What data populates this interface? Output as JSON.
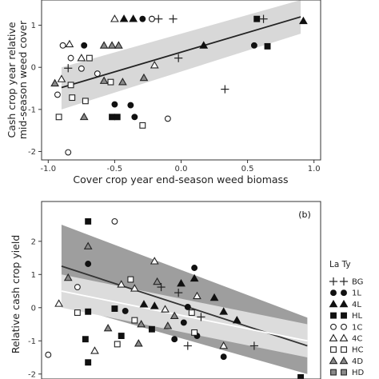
{
  "chart_data": [
    {
      "type": "scatter",
      "panel_label": "",
      "xlabel": "Cover crop year end-season weed biomass",
      "ylabel_lines": [
        "Cash crop year relative",
        "mid-season weed cover"
      ],
      "xlim": [
        -1.05,
        1.05
      ],
      "ylim": [
        -2.2,
        1.6
      ],
      "xticks": [
        -1.0,
        -0.5,
        0.0,
        0.5,
        1.0
      ],
      "xtick_labels": [
        "-1.0",
        "-0.5",
        "0.0",
        "0.5",
        "1.0"
      ],
      "yticks": [
        -2,
        -1,
        0,
        1
      ],
      "ytick_labels": [
        "-2",
        "-1",
        "0",
        "1"
      ],
      "colors": {
        "band": "#d8d8d8",
        "line": "#222222",
        "background": "#ffffff"
      },
      "bands": [
        {
          "x": [
            -0.9,
            0.9
          ],
          "lower": [
            -1.0,
            0.8
          ],
          "upper": [
            0.0,
            1.6
          ]
        }
      ],
      "trend_lines": [
        {
          "x": [
            -0.9,
            0.9
          ],
          "y": [
            -0.48,
            1.2
          ],
          "color": "#222222"
        }
      ],
      "points": [
        {
          "x": -0.5,
          "y": 1.15,
          "m": "4C"
        },
        {
          "x": -0.43,
          "y": 1.15,
          "m": "4L"
        },
        {
          "x": -0.36,
          "y": 1.15,
          "m": "4L"
        },
        {
          "x": -0.29,
          "y": 1.15,
          "m": "1L"
        },
        {
          "x": -0.22,
          "y": 1.15,
          "m": "1L"
        },
        {
          "x": -0.22,
          "y": 1.15,
          "m": "1C"
        },
        {
          "x": -0.17,
          "y": 1.15,
          "m": "BG"
        },
        {
          "x": -0.06,
          "y": 1.15,
          "m": "BG"
        },
        {
          "x": 0.57,
          "y": 1.15,
          "m": "HL"
        },
        {
          "x": 0.62,
          "y": 1.15,
          "m": "BG"
        },
        {
          "x": 0.92,
          "y": 1.1,
          "m": "4L"
        },
        {
          "x": -0.89,
          "y": 0.52,
          "m": "1C"
        },
        {
          "x": -0.84,
          "y": 0.55,
          "m": "4C"
        },
        {
          "x": -0.73,
          "y": 0.52,
          "m": "1L"
        },
        {
          "x": -0.58,
          "y": 0.52,
          "m": "4D"
        },
        {
          "x": -0.52,
          "y": 0.52,
          "m": "4D"
        },
        {
          "x": -0.47,
          "y": 0.52,
          "m": "4D"
        },
        {
          "x": 0.17,
          "y": 0.52,
          "m": "4L"
        },
        {
          "x": 0.55,
          "y": 0.52,
          "m": "1L"
        },
        {
          "x": 0.65,
          "y": 0.5,
          "m": "HL"
        },
        {
          "x": -0.83,
          "y": 0.22,
          "m": "1C"
        },
        {
          "x": -0.75,
          "y": 0.22,
          "m": "4C"
        },
        {
          "x": -0.69,
          "y": 0.22,
          "m": "HC"
        },
        {
          "x": -0.85,
          "y": -0.02,
          "m": "BG"
        },
        {
          "x": -0.75,
          "y": -0.03,
          "m": "1C"
        },
        {
          "x": -0.2,
          "y": 0.05,
          "m": "4C"
        },
        {
          "x": -0.02,
          "y": 0.22,
          "m": "BG"
        },
        {
          "x": -0.95,
          "y": -0.38,
          "m": "4D"
        },
        {
          "x": -0.9,
          "y": -0.28,
          "m": "4C"
        },
        {
          "x": -0.83,
          "y": -0.42,
          "m": "HC"
        },
        {
          "x": -0.63,
          "y": -0.15,
          "m": "1C"
        },
        {
          "x": -0.58,
          "y": -0.32,
          "m": "4D"
        },
        {
          "x": -0.53,
          "y": -0.35,
          "m": "HC"
        },
        {
          "x": -0.44,
          "y": -0.35,
          "m": "4D"
        },
        {
          "x": -0.28,
          "y": -0.25,
          "m": "4D"
        },
        {
          "x": 0.33,
          "y": -0.52,
          "m": "BG"
        },
        {
          "x": -0.93,
          "y": -0.65,
          "m": "1C"
        },
        {
          "x": -0.82,
          "y": -0.72,
          "m": "HC"
        },
        {
          "x": -0.72,
          "y": -0.8,
          "m": "HC"
        },
        {
          "x": -0.5,
          "y": -0.88,
          "m": "1L"
        },
        {
          "x": -0.38,
          "y": -0.9,
          "m": "1L"
        },
        {
          "x": -0.52,
          "y": -1.18,
          "m": "HL"
        },
        {
          "x": -0.48,
          "y": -1.18,
          "m": "HL"
        },
        {
          "x": -0.73,
          "y": -1.18,
          "m": "4D"
        },
        {
          "x": -0.92,
          "y": -1.18,
          "m": "HC"
        },
        {
          "x": -0.35,
          "y": -1.18,
          "m": "1L"
        },
        {
          "x": -0.29,
          "y": -1.38,
          "m": "HC"
        },
        {
          "x": -0.1,
          "y": -1.22,
          "m": "1C"
        },
        {
          "x": -0.85,
          "y": -2.02,
          "m": "1C"
        }
      ]
    },
    {
      "type": "scatter",
      "panel_label": "(b)",
      "xlabel": "",
      "ylabel_lines": [
        "Relative cash crop yield"
      ],
      "xlim": [
        -1.05,
        1.05
      ],
      "ylim": [
        -2.15,
        3.2
      ],
      "xticks": [],
      "xtick_labels": [],
      "yticks": [
        -2,
        -1,
        0,
        1,
        2
      ],
      "ytick_labels": [
        "-2",
        "-1",
        "0",
        "1",
        "2"
      ],
      "colors": {
        "band_outer": "#9e9e9e",
        "band_inner": "#dcdcdc",
        "line_dark": "#333333",
        "line_light": "#ffffff",
        "background": "#ffffff"
      },
      "bands": [
        {
          "x": [
            -0.9,
            0.95
          ],
          "lower": [
            0.1,
            -2.0
          ],
          "upper": [
            2.5,
            -0.3
          ],
          "color": "#9e9e9e"
        },
        {
          "x": [
            -0.9,
            0.95
          ],
          "lower": [
            0.0,
            -1.5
          ],
          "upper": [
            1.0,
            -0.5
          ],
          "color": "#dcdcdc"
        }
      ],
      "trend_lines": [
        {
          "x": [
            -0.9,
            0.95
          ],
          "y": [
            1.25,
            -1.15
          ],
          "color": "#333333"
        },
        {
          "x": [
            -0.9,
            0.95
          ],
          "y": [
            0.5,
            -1.0
          ],
          "color": "#ffffff"
        }
      ],
      "points": [
        {
          "x": -0.7,
          "y": 2.6,
          "m": "HL"
        },
        {
          "x": -0.5,
          "y": 2.6,
          "m": "1C"
        },
        {
          "x": -0.7,
          "y": 1.85,
          "m": "4D"
        },
        {
          "x": -0.7,
          "y": 1.32,
          "m": "1L"
        },
        {
          "x": -0.2,
          "y": 1.4,
          "m": "4C"
        },
        {
          "x": 0.1,
          "y": 1.2,
          "m": "1L"
        },
        {
          "x": 0.1,
          "y": 0.88,
          "m": "4L"
        },
        {
          "x": 0.12,
          "y": 0.35,
          "m": "4C"
        },
        {
          "x": -0.85,
          "y": 0.9,
          "m": "4D"
        },
        {
          "x": -0.78,
          "y": 0.62,
          "m": "1C"
        },
        {
          "x": -0.45,
          "y": 0.7,
          "m": "4C"
        },
        {
          "x": -0.38,
          "y": 0.85,
          "m": "HC"
        },
        {
          "x": -0.35,
          "y": 0.58,
          "m": "4C"
        },
        {
          "x": -0.18,
          "y": 0.78,
          "m": "4D"
        },
        {
          "x": -0.15,
          "y": 0.62,
          "m": "BG"
        },
        {
          "x": 0.0,
          "y": 0.73,
          "m": "4L"
        },
        {
          "x": -0.02,
          "y": 0.45,
          "m": "BG"
        },
        {
          "x": -0.92,
          "y": 0.12,
          "m": "4C"
        },
        {
          "x": -0.78,
          "y": -0.15,
          "m": "HC"
        },
        {
          "x": -0.7,
          "y": -0.12,
          "m": "HL"
        },
        {
          "x": -0.5,
          "y": -0.03,
          "m": "HL"
        },
        {
          "x": -0.42,
          "y": -0.1,
          "m": "1L"
        },
        {
          "x": -0.28,
          "y": 0.1,
          "m": "4L"
        },
        {
          "x": -0.2,
          "y": 0.05,
          "m": "4L"
        },
        {
          "x": -0.12,
          "y": -0.05,
          "m": "4C"
        },
        {
          "x": -0.05,
          "y": -0.25,
          "m": "4D"
        },
        {
          "x": 0.05,
          "y": 0.02,
          "m": "1L"
        },
        {
          "x": 0.08,
          "y": -0.15,
          "m": "HC"
        },
        {
          "x": 0.15,
          "y": -0.28,
          "m": "BG"
        },
        {
          "x": 0.25,
          "y": 0.3,
          "m": "4L"
        },
        {
          "x": 0.32,
          "y": -0.12,
          "m": "4L"
        },
        {
          "x": 0.42,
          "y": -0.38,
          "m": "4L"
        },
        {
          "x": -0.35,
          "y": -0.38,
          "m": "HC"
        },
        {
          "x": -0.3,
          "y": -0.5,
          "m": "4D"
        },
        {
          "x": -0.22,
          "y": -0.65,
          "m": "HL"
        },
        {
          "x": -0.1,
          "y": -0.55,
          "m": "4D"
        },
        {
          "x": 0.02,
          "y": -0.45,
          "m": "1L"
        },
        {
          "x": 0.12,
          "y": -0.85,
          "m": "1L"
        },
        {
          "x": -0.72,
          "y": -0.95,
          "m": "HL"
        },
        {
          "x": -0.55,
          "y": -0.62,
          "m": "4D"
        },
        {
          "x": -0.45,
          "y": -0.85,
          "m": "HL"
        },
        {
          "x": -0.05,
          "y": -0.95,
          "m": "1L"
        },
        {
          "x": 0.1,
          "y": -0.75,
          "m": "HC"
        },
        {
          "x": -0.65,
          "y": -1.3,
          "m": "4C"
        },
        {
          "x": -0.48,
          "y": -1.1,
          "m": "HC"
        },
        {
          "x": -0.32,
          "y": -1.08,
          "m": "4D"
        },
        {
          "x": 0.05,
          "y": -1.15,
          "m": "BG"
        },
        {
          "x": 0.32,
          "y": -1.15,
          "m": "4C"
        },
        {
          "x": 0.55,
          "y": -1.15,
          "m": "BG"
        },
        {
          "x": 0.32,
          "y": -1.48,
          "m": "1L"
        },
        {
          "x": -0.7,
          "y": -1.65,
          "m": "HL"
        },
        {
          "x": -1.0,
          "y": -1.42,
          "m": "1C"
        },
        {
          "x": 0.9,
          "y": -2.1,
          "m": "HL"
        }
      ]
    }
  ],
  "legend": {
    "title": "La Ty",
    "entries": [
      {
        "key": "BG",
        "label": "BG"
      },
      {
        "key": "1L",
        "label": "1L"
      },
      {
        "key": "4L",
        "label": "4L"
      },
      {
        "key": "HL",
        "label": "HL"
      },
      {
        "key": "1C",
        "label": "1C"
      },
      {
        "key": "4C",
        "label": "4C"
      },
      {
        "key": "HC",
        "label": "HC"
      },
      {
        "key": "4D",
        "label": "4D"
      },
      {
        "key": "HD",
        "label": "HD"
      }
    ]
  },
  "markers": {
    "BG": {
      "shape": "plus",
      "fill": "none",
      "stroke": "#222222"
    },
    "1L": {
      "shape": "circle",
      "fill": "#111111",
      "stroke": "#111111"
    },
    "4L": {
      "shape": "triangle",
      "fill": "#111111",
      "stroke": "#111111"
    },
    "HL": {
      "shape": "square",
      "fill": "#111111",
      "stroke": "#111111"
    },
    "1C": {
      "shape": "circle",
      "fill": "#ffffff",
      "stroke": "#222222"
    },
    "4C": {
      "shape": "triangle",
      "fill": "#ffffff",
      "stroke": "#222222"
    },
    "HC": {
      "shape": "square",
      "fill": "#ffffff",
      "stroke": "#222222"
    },
    "4D": {
      "shape": "triangle",
      "fill": "#8a8a8a",
      "stroke": "#222222"
    },
    "HD": {
      "shape": "square",
      "fill": "#8a8a8a",
      "stroke": "#222222"
    }
  }
}
